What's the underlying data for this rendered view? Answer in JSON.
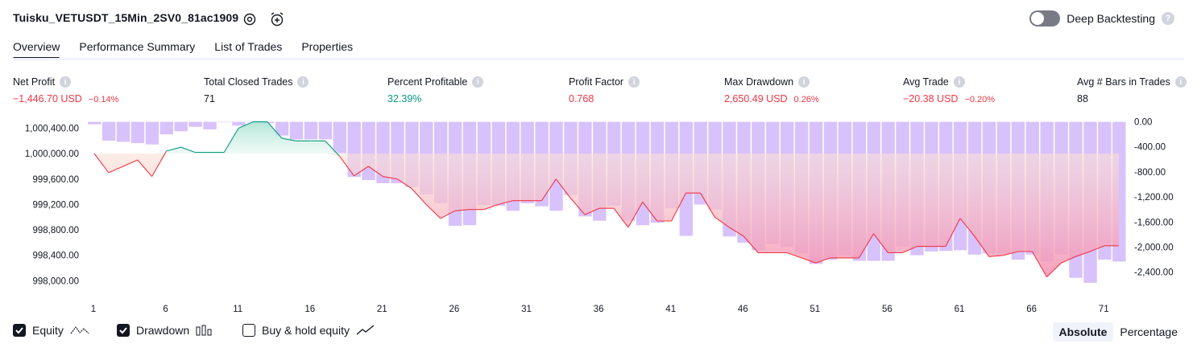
{
  "header": {
    "strategy_title": "Tuisku_VETUSDT_15Min_2SV0_81ac1909",
    "settings_icon": "gear-icon",
    "add_alert_icon": "alarm-plus-icon",
    "deep_backtesting_label": "Deep Backtesting",
    "deep_backtesting_enabled": false
  },
  "tabs": [
    {
      "label": "Overview",
      "active": true
    },
    {
      "label": "Performance Summary",
      "active": false
    },
    {
      "label": "List of Trades",
      "active": false
    },
    {
      "label": "Properties",
      "active": false
    }
  ],
  "metrics": {
    "net_profit": {
      "label": "Net Profit",
      "value": "−1,446.70 USD",
      "pct": "−0.14%"
    },
    "total_closed_trades": {
      "label": "Total Closed Trades",
      "value": "71"
    },
    "percent_profitable": {
      "label": "Percent Profitable",
      "value": "32.39%"
    },
    "profit_factor": {
      "label": "Profit Factor",
      "value": "0.768"
    },
    "max_drawdown": {
      "label": "Max Drawdown",
      "value": "2,650.49 USD",
      "pct": "0.26%"
    },
    "avg_trade": {
      "label": "Avg Trade",
      "value": "−20.38 USD",
      "pct": "−0.20%"
    },
    "avg_bars": {
      "label": "Avg # Bars in Trades",
      "value": "88"
    }
  },
  "colors": {
    "profit": "#089981",
    "loss": "#f23645",
    "drawdown_bar": "#d8c2fb",
    "equity_up_fill": "#cdeee4",
    "equity_down_fill": "#f7a7b8"
  },
  "chart_data": {
    "type": "line",
    "x_ticks": [
      "1",
      "6",
      "11",
      "16",
      "21",
      "26",
      "31",
      "36",
      "41",
      "46",
      "51",
      "56",
      "61",
      "66",
      "71"
    ],
    "equity_axis_labels": [
      "1,000,400.00",
      "1,000,000.00",
      "999,600.00",
      "999,200.00",
      "998,800.00",
      "998,400.00",
      "998,000.00"
    ],
    "drawdown_axis_labels": [
      "0.00",
      "-400.00",
      "-800.00",
      "-1,200.00",
      "-1,600.00",
      "-2,000.00",
      "-2,400.00"
    ],
    "equity_ylim": [
      997840,
      1000520
    ],
    "drawdown_ylim": [
      -2700,
      20
    ],
    "equity": [
      {
        "trade": 1,
        "value": 1000000
      },
      {
        "trade": 2,
        "value": 999700
      },
      {
        "trade": 3,
        "value": 999800
      },
      {
        "trade": 4,
        "value": 999900
      },
      {
        "trade": 5,
        "value": 999640
      },
      {
        "trade": 6,
        "value": 1000040
      },
      {
        "trade": 7,
        "value": 1000100
      },
      {
        "trade": 8,
        "value": 1000020
      },
      {
        "trade": 9,
        "value": 1000020
      },
      {
        "trade": 10,
        "value": 1000020
      },
      {
        "trade": 11,
        "value": 1000400
      },
      {
        "trade": 12,
        "value": 1000500
      },
      {
        "trade": 13,
        "value": 1000500
      },
      {
        "trade": 14,
        "value": 1000240
      },
      {
        "trade": 15,
        "value": 1000200
      },
      {
        "trade": 16,
        "value": 1000200
      },
      {
        "trade": 17,
        "value": 1000200
      },
      {
        "trade": 18,
        "value": 999960
      },
      {
        "trade": 19,
        "value": 999650
      },
      {
        "trade": 20,
        "value": 999800
      },
      {
        "trade": 21,
        "value": 999640
      },
      {
        "trade": 22,
        "value": 999600
      },
      {
        "trade": 23,
        "value": 999450
      },
      {
        "trade": 24,
        "value": 999200
      },
      {
        "trade": 25,
        "value": 998980
      },
      {
        "trade": 26,
        "value": 999100
      },
      {
        "trade": 27,
        "value": 999120
      },
      {
        "trade": 28,
        "value": 999120
      },
      {
        "trade": 29,
        "value": 999200
      },
      {
        "trade": 30,
        "value": 999260
      },
      {
        "trade": 31,
        "value": 999260
      },
      {
        "trade": 32,
        "value": 999260
      },
      {
        "trade": 33,
        "value": 999600
      },
      {
        "trade": 34,
        "value": 999300
      },
      {
        "trade": 35,
        "value": 999040
      },
      {
        "trade": 36,
        "value": 999140
      },
      {
        "trade": 37,
        "value": 999140
      },
      {
        "trade": 38,
        "value": 998840
      },
      {
        "trade": 39,
        "value": 999240
      },
      {
        "trade": 40,
        "value": 998940
      },
      {
        "trade": 41,
        "value": 998940
      },
      {
        "trade": 42,
        "value": 999380
      },
      {
        "trade": 43,
        "value": 999380
      },
      {
        "trade": 44,
        "value": 999000
      },
      {
        "trade": 45,
        "value": 998840
      },
      {
        "trade": 46,
        "value": 998700
      },
      {
        "trade": 47,
        "value": 998440
      },
      {
        "trade": 48,
        "value": 998440
      },
      {
        "trade": 49,
        "value": 998440
      },
      {
        "trade": 50,
        "value": 998360
      },
      {
        "trade": 51,
        "value": 998280
      },
      {
        "trade": 52,
        "value": 998360
      },
      {
        "trade": 53,
        "value": 998360
      },
      {
        "trade": 54,
        "value": 998360
      },
      {
        "trade": 55,
        "value": 998740
      },
      {
        "trade": 56,
        "value": 998440
      },
      {
        "trade": 57,
        "value": 998440
      },
      {
        "trade": 58,
        "value": 998540
      },
      {
        "trade": 59,
        "value": 998540
      },
      {
        "trade": 60,
        "value": 998540
      },
      {
        "trade": 61,
        "value": 998980
      },
      {
        "trade": 62,
        "value": 998700
      },
      {
        "trade": 63,
        "value": 998380
      },
      {
        "trade": 64,
        "value": 998400
      },
      {
        "trade": 65,
        "value": 998460
      },
      {
        "trade": 66,
        "value": 998460
      },
      {
        "trade": 67,
        "value": 998060
      },
      {
        "trade": 68,
        "value": 998280
      },
      {
        "trade": 69,
        "value": 998380
      },
      {
        "trade": 70,
        "value": 998460
      },
      {
        "trade": 71,
        "value": 998550
      },
      {
        "trade": 72,
        "value": 998550
      }
    ],
    "drawdown": [
      -40,
      -300,
      -320,
      -340,
      -360,
      -200,
      -150,
      -80,
      -120,
      0,
      -60,
      0,
      -20,
      -220,
      -280,
      -280,
      -280,
      -500,
      -880,
      -930,
      -980,
      -980,
      -1040,
      -1160,
      -1300,
      -1660,
      -1650,
      -1330,
      -1340,
      -1420,
      -1300,
      -1350,
      -1420,
      -1170,
      -1510,
      -1580,
      -1340,
      -1580,
      -1650,
      -1610,
      -1380,
      -1820,
      -1320,
      -1400,
      -1830,
      -1930,
      -2050,
      -1950,
      -2000,
      -2100,
      -2270,
      -2200,
      -2130,
      -2220,
      -2220,
      -2220,
      -1990,
      -2130,
      -2070,
      -2060,
      -2050,
      -2120,
      -2100,
      -2100,
      -2200,
      -2120,
      -2230,
      -2120,
      -2490,
      -2570,
      -2200,
      -2230
    ],
    "legend": [
      {
        "label": "Equity",
        "checked": true,
        "icon": "equity-line-icon"
      },
      {
        "label": "Drawdown",
        "checked": true,
        "icon": "bars-icon"
      },
      {
        "label": "Buy & hold equity",
        "checked": false,
        "icon": "trend-line-icon"
      }
    ],
    "scale_modes": [
      {
        "label": "Absolute",
        "active": true
      },
      {
        "label": "Percentage",
        "active": false
      }
    ]
  }
}
